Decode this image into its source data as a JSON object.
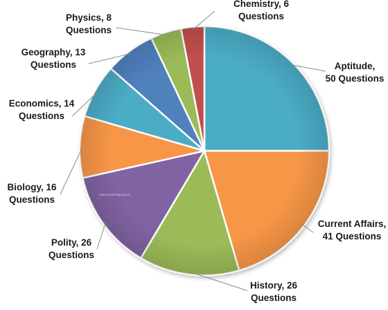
{
  "chart_data": {
    "type": "pie",
    "title": "",
    "watermark": "www.freshergurus.in",
    "slices": [
      {
        "name": "Aptitude",
        "value": 50,
        "label_line1": "Aptitude,",
        "label_line2": "50 Questions",
        "color": "#4bacc6"
      },
      {
        "name": "Current Affairs",
        "value": 41,
        "label_line1": "Current Affairs,",
        "label_line2": "41 Questions",
        "color": "#f79646"
      },
      {
        "name": "History",
        "value": 26,
        "label_line1": "History, 26",
        "label_line2": "Questions",
        "color": "#9bbb59"
      },
      {
        "name": "Polity",
        "value": 26,
        "label_line1": "Polity, 26",
        "label_line2": "Questions",
        "color": "#8064a2"
      },
      {
        "name": "Biology",
        "value": 16,
        "label_line1": "Biology, 16",
        "label_line2": "Questions",
        "color": "#f79646"
      },
      {
        "name": "Economics",
        "value": 14,
        "label_line1": "Economics, 14",
        "label_line2": "Questions",
        "color": "#4bacc6"
      },
      {
        "name": "Geography",
        "value": 13,
        "label_line1": "Geography, 13",
        "label_line2": "Questions",
        "color": "#4f81bd"
      },
      {
        "name": "Physics",
        "value": 8,
        "label_line1": "Physics, 8",
        "label_line2": "Questions",
        "color": "#9bbb59"
      },
      {
        "name": "Chemistry",
        "value": 6,
        "label_line1": "Chemistry, 6",
        "label_line2": "Questions",
        "color": "#c0504d"
      }
    ]
  }
}
